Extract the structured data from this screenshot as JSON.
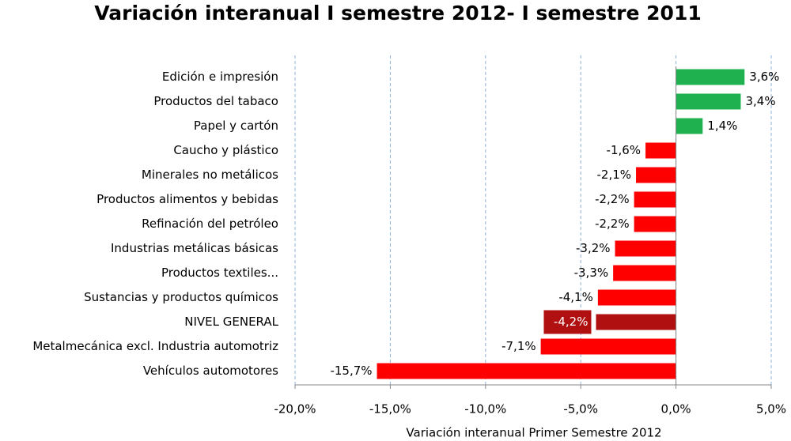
{
  "chart_data": {
    "type": "bar",
    "orientation": "horizontal",
    "title": "Variación interanual I semestre 2012- I semestre 2011",
    "x_label": "Variación interanual Primer Semestre 2012",
    "categories": [
      "Edición e impresión",
      "Productos del tabaco",
      "Papel y cartón",
      "Caucho y plástico",
      "Minerales no metálicos",
      "Productos alimentos y bebidas",
      "Refinación del petróleo",
      "Industrias metálicas básicas",
      "Productos textiles...",
      "Sustancias y productos químicos",
      "NIVEL GENERAL",
      "Metalmecánica excl. Industria automotriz",
      "Vehículos automotores"
    ],
    "values": [
      3.6,
      3.4,
      1.4,
      -1.6,
      -2.1,
      -2.2,
      -2.2,
      -3.2,
      -3.3,
      -4.1,
      -4.2,
      -7.1,
      -15.7
    ],
    "value_labels": [
      "3,6%",
      "3,4%",
      "1,4%",
      "-1,6%",
      "-2,1%",
      "-2,2%",
      "-2,2%",
      "-3,2%",
      "-3,3%",
      "-4,1%",
      "-4,2%",
      "-7,1%",
      "-15,7%"
    ],
    "colors": [
      "#1fb050",
      "#1fb050",
      "#1fb050",
      "#ff0000",
      "#ff0000",
      "#ff0000",
      "#ff0000",
      "#ff0000",
      "#ff0000",
      "#ff0000",
      "#b01010",
      "#ff0000",
      "#ff0000"
    ],
    "xlim": [
      -20,
      5
    ],
    "xticks": [
      {
        "value": -20,
        "label": "-20,0%"
      },
      {
        "value": -15,
        "label": "-15,0%"
      },
      {
        "value": -10,
        "label": "-10,0%"
      },
      {
        "value": -5,
        "label": "-5,0%"
      },
      {
        "value": 0,
        "label": "0,0%"
      },
      {
        "value": 5,
        "label": "5,0%"
      }
    ],
    "grid": true
  }
}
